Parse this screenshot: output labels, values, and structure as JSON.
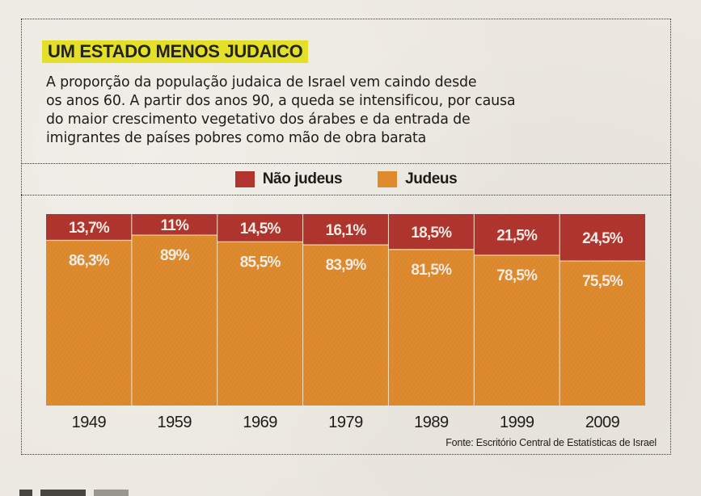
{
  "article": {
    "title": "UM ESTADO MENOS JUDAICO",
    "subtitle_lines": [
      "A proporção da população judaica de Israel vem caindo desde",
      "os anos 60. A partir dos anos 90, a queda se intensificou, por causa",
      "do maior crescimento vegetativo dos árabes e da entrada de",
      "imigrantes de países pobres como mão de obra barata"
    ],
    "source": "Fonte: Escritório Central de Estatísticas de Israel"
  },
  "colors": {
    "nao_judeus": "#B0352F",
    "judeus": "#DE8A2E",
    "title_highlight": "#E4E02A",
    "page": "#ECE8E1"
  },
  "chart_data": {
    "type": "bar",
    "stacked": true,
    "normalized": true,
    "title": "UM ESTADO MENOS JUDAICO",
    "xlabel": "",
    "ylabel": "",
    "ylim": [
      0,
      100
    ],
    "unit": "%",
    "grid": false,
    "legend_position": "top-center",
    "categories": [
      "1949",
      "1959",
      "1969",
      "1979",
      "1989",
      "1999",
      "2009"
    ],
    "series": [
      {
        "name": "Não judeus",
        "color": "#B0352F",
        "position": "top",
        "values": [
          13.7,
          11,
          14.5,
          16.1,
          18.5,
          21.5,
          24.5
        ],
        "labels": [
          "13,7%",
          "11%",
          "14,5%",
          "16,1%",
          "18,5%",
          "21,5%",
          "24,5%"
        ]
      },
      {
        "name": "Judeus",
        "color": "#DE8A2E",
        "position": "bottom",
        "values": [
          86.3,
          89,
          85.5,
          83.9,
          81.5,
          78.5,
          75.5
        ],
        "labels": [
          "86,3%",
          "89%",
          "85,5%",
          "83,9%",
          "81,5%",
          "78,5%",
          "75,5%"
        ]
      }
    ],
    "source": "Fonte: Escritório Central de Estatísticas de Israel"
  }
}
